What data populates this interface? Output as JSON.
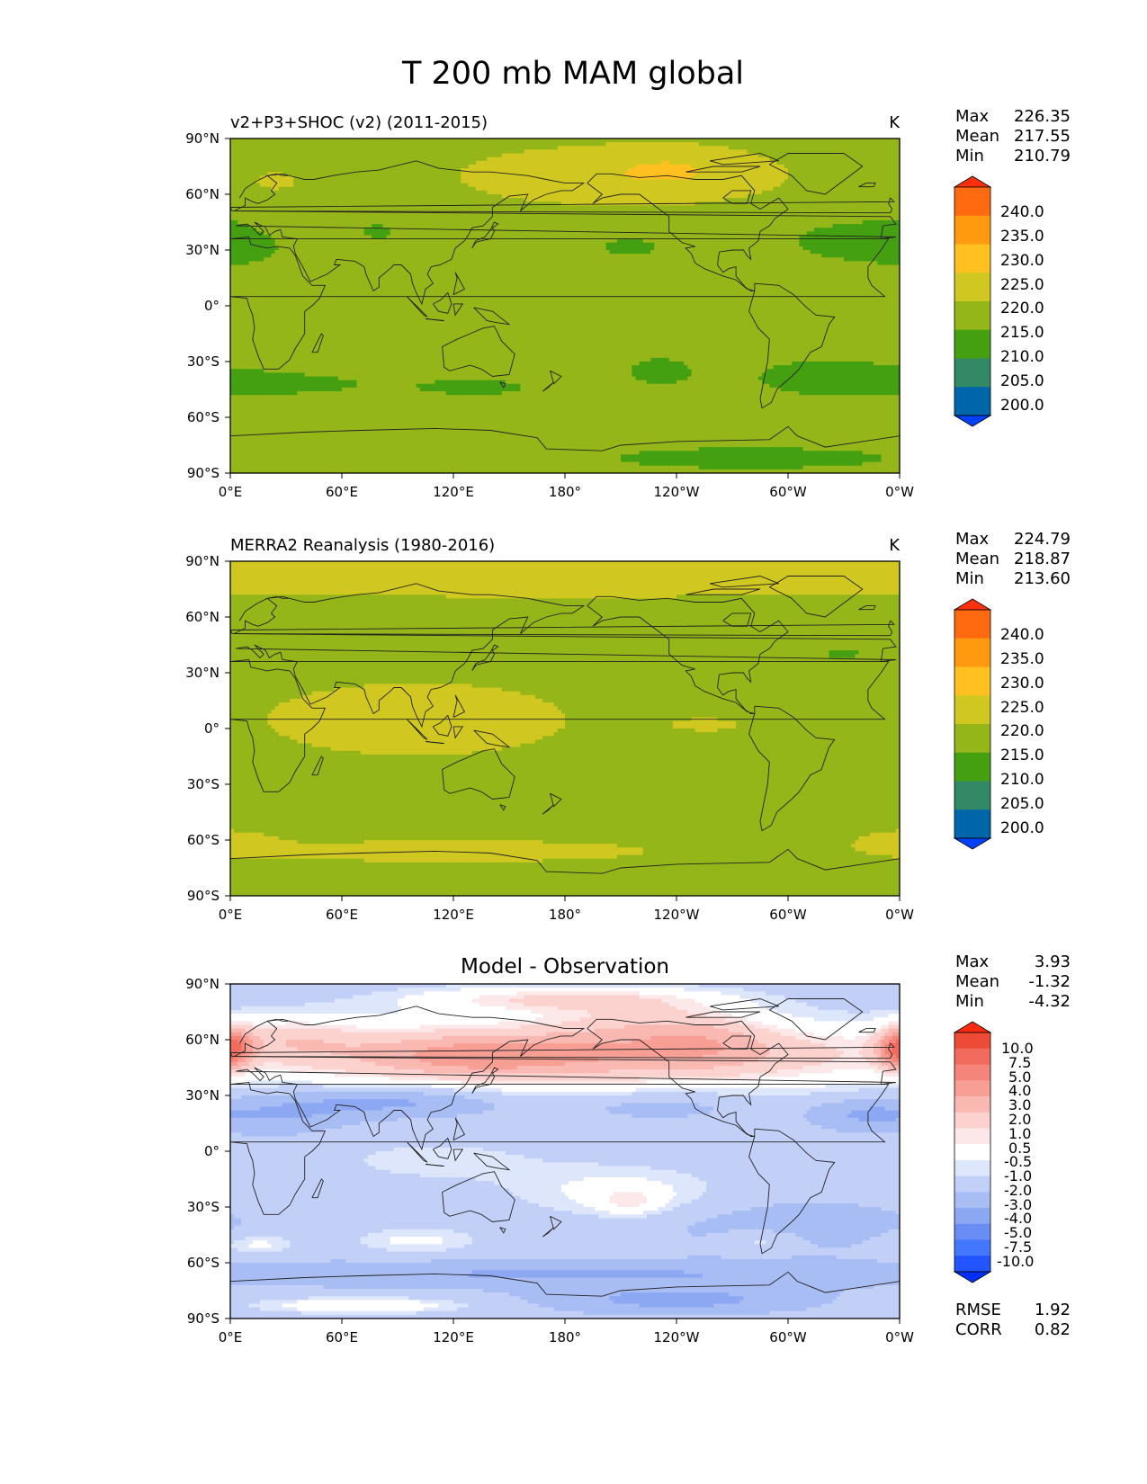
{
  "figure_title": "T 200 mb MAM global",
  "x_tick_labels": [
    "0°E",
    "60°E",
    "120°E",
    "180°",
    "120°W",
    "60°W",
    "0°W"
  ],
  "y_tick_labels": [
    "90°N",
    "60°N",
    "30°N",
    "0°",
    "30°S",
    "60°S",
    "90°S"
  ],
  "stat_labels": {
    "max": "Max",
    "mean": "Mean",
    "min": "Min",
    "rmse": "RMSE",
    "corr": "CORR"
  },
  "colors": {
    "abs_levels": [
      "#0040ff",
      "#0066aa",
      "#338866",
      "#44a010",
      "#95b618",
      "#d0c820",
      "#ffc020",
      "#ff9a10",
      "#ff6a10",
      "#ff3010"
    ],
    "diff_levels": [
      "#0030ff",
      "#2255ff",
      "#4477ff",
      "#6a8cf5",
      "#8da8f3",
      "#a9bdf5",
      "#c2d0f8",
      "#dde6fb",
      "#ffffff",
      "#fce8e8",
      "#fcd2cf",
      "#f9b8b2",
      "#f79e95",
      "#f5857a",
      "#f26b5c",
      "#ee4b36",
      "#ff2a10"
    ]
  },
  "chart_data": [
    {
      "type": "heatmap",
      "title": "v2+P3+SHOC (v2) (2011-2015)",
      "units": "K",
      "xlabel": "",
      "ylabel": "",
      "xlim": [
        0,
        360
      ],
      "ylim": [
        -90,
        90
      ],
      "stats": {
        "max": "226.35",
        "mean": "217.55",
        "min": "210.79"
      },
      "colorbar_levels": [
        200.0,
        205.0,
        210.0,
        215.0,
        220.0,
        225.0,
        230.0,
        235.0,
        240.0
      ],
      "colorbar_labels": [
        "240.0",
        "235.0",
        "230.0",
        "225.0",
        "220.0",
        "215.0",
        "210.0",
        "205.0",
        "200.0"
      ],
      "field": {
        "base": 217,
        "features": [
          {
            "lon": 210,
            "lat": 70,
            "sx": 70,
            "sy": 13,
            "amp": 6.5
          },
          {
            "lon": 240,
            "lat": 74,
            "sx": 25,
            "sy": 8,
            "amp": 3
          },
          {
            "lon": 25,
            "lat": 67,
            "sx": 14,
            "sy": 6,
            "amp": 3.5
          },
          {
            "lon": 80,
            "lat": 40,
            "sx": 12,
            "sy": 6,
            "amp": -2.5
          },
          {
            "lon": 215,
            "lat": 32,
            "sx": 22,
            "sy": 7,
            "amp": -2.5
          },
          {
            "lon": 330,
            "lat": 35,
            "sx": 28,
            "sy": 10,
            "amp": -3
          },
          {
            "lon": 360,
            "lat": 35,
            "sx": 15,
            "sy": 10,
            "amp": -2
          },
          {
            "lon": 10,
            "lat": 31,
            "sx": 12,
            "sy": 5,
            "amp": -2.5
          },
          {
            "lon": 30,
            "lat": -42,
            "sx": 45,
            "sy": 6,
            "amp": -2.6
          },
          {
            "lon": 135,
            "lat": -44,
            "sx": 30,
            "sy": 5,
            "amp": -2.5
          },
          {
            "lon": 230,
            "lat": -35,
            "sx": 20,
            "sy": 9,
            "amp": -2.5
          },
          {
            "lon": 320,
            "lat": -38,
            "sx": 35,
            "sy": 9,
            "amp": -3
          },
          {
            "lon": 280,
            "lat": -82,
            "sx": 80,
            "sy": 6,
            "amp": -3
          }
        ]
      }
    },
    {
      "type": "heatmap",
      "title": "MERRA2 Reanalysis (1980-2016)",
      "units": "K",
      "xlabel": "",
      "ylabel": "",
      "xlim": [
        0,
        360
      ],
      "ylim": [
        -90,
        90
      ],
      "stats": {
        "max": "224.79",
        "mean": "218.87",
        "min": "213.60"
      },
      "colorbar_levels": [
        200.0,
        205.0,
        210.0,
        215.0,
        220.0,
        225.0,
        230.0,
        235.0,
        240.0
      ],
      "colorbar_labels": [
        "240.0",
        "235.0",
        "230.0",
        "225.0",
        "220.0",
        "215.0",
        "210.0",
        "205.0",
        "200.0"
      ],
      "field": {
        "base": 218.2,
        "features": [
          {
            "lon": 180,
            "lat": 84,
            "sx": 400,
            "sy": 13,
            "amp": 3
          },
          {
            "lon": 100,
            "lat": 5,
            "sx": 75,
            "sy": 18,
            "amp": 3.2
          },
          {
            "lon": 260,
            "lat": 2,
            "sx": 25,
            "sy": 5,
            "amp": 1.8
          },
          {
            "lon": 120,
            "lat": -66,
            "sx": 110,
            "sy": 6,
            "amp": 2.8
          },
          {
            "lon": 360,
            "lat": -60,
            "sx": 18,
            "sy": 5,
            "amp": 2.5
          },
          {
            "lon": 90,
            "lat": 45,
            "sx": 14,
            "sy": 6,
            "amp": -3.3
          },
          {
            "lon": 220,
            "lat": 35,
            "sx": 16,
            "sy": 5,
            "amp": -3.3
          },
          {
            "lon": 330,
            "lat": 40,
            "sx": 25,
            "sy": 8,
            "amp": -3.5
          },
          {
            "lon": 50,
            "lat": -40,
            "sx": 30,
            "sy": 3,
            "amp": -3
          }
        ]
      }
    },
    {
      "type": "heatmap",
      "title": "Model - Observation",
      "units": "",
      "xlabel": "",
      "ylabel": "",
      "xlim": [
        0,
        360
      ],
      "ylim": [
        -90,
        90
      ],
      "stats": {
        "max": "3.93",
        "mean": "-1.32",
        "min": "-4.32"
      },
      "extra_stats": {
        "rmse": "1.92",
        "corr": "0.82"
      },
      "colorbar_levels": [
        -10.0,
        -7.5,
        -5.0,
        -4.0,
        -3.0,
        -2.0,
        -1.0,
        -0.5,
        0.5,
        1.0,
        2.0,
        3.0,
        4.0,
        5.0,
        7.5,
        10.0
      ],
      "colorbar_labels": [
        "10.0",
        "7.5",
        "5.0",
        "4.0",
        "3.0",
        "2.0",
        "1.0",
        "0.5",
        "-0.5",
        "-1.0",
        "-2.0",
        "-3.0",
        "-4.0",
        "-5.0",
        "-7.5",
        "-10.0"
      ],
      "field": {
        "base": -1.6,
        "features": [
          {
            "lon": 180,
            "lat": 52,
            "sx": 140,
            "sy": 13,
            "amp": 4.5
          },
          {
            "lon": 130,
            "lat": 50,
            "sx": 35,
            "sy": 8,
            "amp": 1.2
          },
          {
            "lon": 220,
            "lat": 70,
            "sx": 35,
            "sy": 8,
            "amp": 1.2
          },
          {
            "lon": 30,
            "lat": 62,
            "sx": 25,
            "sy": 8,
            "amp": 1.5
          },
          {
            "lon": 255,
            "lat": 62,
            "sx": 25,
            "sy": 10,
            "amp": 1.2
          },
          {
            "lon": 180,
            "lat": 82,
            "sx": 60,
            "sy": 5,
            "amp": 2.5
          },
          {
            "lon": 360,
            "lat": 55,
            "sx": 8,
            "sy": 8,
            "amp": 2.5
          },
          {
            "lon": 0,
            "lat": 55,
            "sx": 8,
            "sy": 8,
            "amp": 2.5
          },
          {
            "lon": 90,
            "lat": 27,
            "sx": 40,
            "sy": 6,
            "amp": -2
          },
          {
            "lon": 30,
            "lat": 20,
            "sx": 25,
            "sy": 8,
            "amp": -1.3
          },
          {
            "lon": 230,
            "lat": 25,
            "sx": 40,
            "sy": 6,
            "amp": -1
          },
          {
            "lon": 340,
            "lat": 20,
            "sx": 20,
            "sy": 6,
            "amp": -1.5
          },
          {
            "lon": 210,
            "lat": -22,
            "sx": 40,
            "sy": 10,
            "amp": 1.4
          },
          {
            "lon": 215,
            "lat": -27,
            "sx": 12,
            "sy": 5,
            "amp": 1.4
          },
          {
            "lon": 110,
            "lat": -5,
            "sx": 50,
            "sy": 10,
            "amp": 0.8
          },
          {
            "lon": 100,
            "lat": -48,
            "sx": 25,
            "sy": 5,
            "amp": 1.3
          },
          {
            "lon": 15,
            "lat": -50,
            "sx": 15,
            "sy": 4,
            "amp": 1.4
          },
          {
            "lon": 285,
            "lat": -48,
            "sx": 15,
            "sy": 4,
            "amp": 1.3
          },
          {
            "lon": 300,
            "lat": -40,
            "sx": 50,
            "sy": 10,
            "amp": -1
          },
          {
            "lon": 180,
            "lat": -66,
            "sx": 160,
            "sy": 5,
            "amp": -1.5
          },
          {
            "lon": 240,
            "lat": -80,
            "sx": 50,
            "sy": 5,
            "amp": -1.8
          },
          {
            "lon": 70,
            "lat": -83,
            "sx": 40,
            "sy": 3,
            "amp": 2
          }
        ]
      }
    }
  ]
}
